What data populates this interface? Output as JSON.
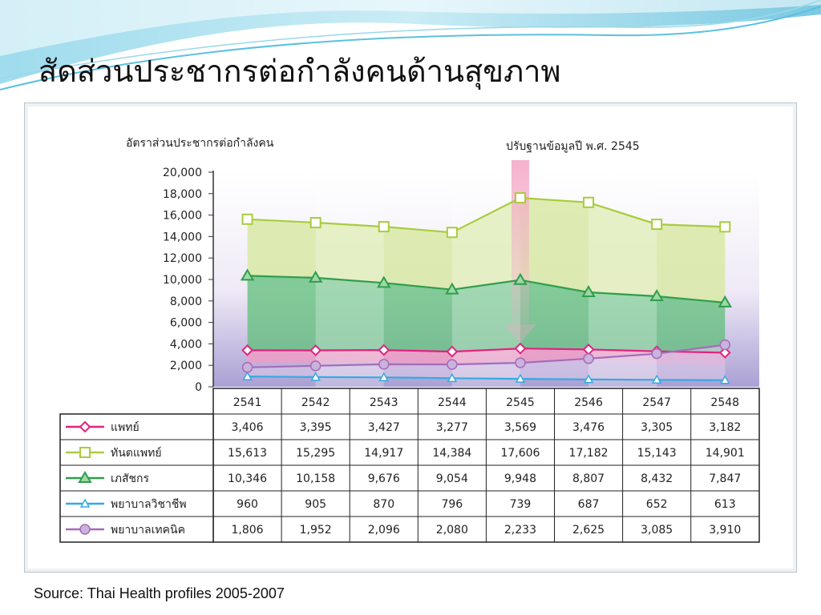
{
  "slide": {
    "title": "สัดส่วนประชากรต่อกำลังคนด้านสุขภาพ",
    "source": "Source: Thai Health profiles 2005-2007"
  },
  "chart_data": {
    "type": "area",
    "ylabel": "อัตราส่วนประชากรต่อกำลังคน",
    "annotation": "ปรับฐานข้อมูลปี พ.ศ. 2545",
    "ylim": [
      0,
      20000
    ],
    "yticks": [
      "20,000",
      "18,000",
      "16,000",
      "14,000",
      "12,000",
      "10,000",
      "8,000",
      "6,000",
      "4,000",
      "2,000",
      "0"
    ],
    "categories": [
      "2541",
      "2542",
      "2543",
      "2544",
      "2545",
      "2546",
      "2547",
      "2548"
    ],
    "series": [
      {
        "name": "แพทย์",
        "color": "#e0237f",
        "marker": "diamond",
        "values": [
          3406,
          3395,
          3427,
          3277,
          3569,
          3476,
          3305,
          3182
        ],
        "labels": [
          "3,406",
          "3,395",
          "3,427",
          "3,277",
          "3,569",
          "3,476",
          "3,305",
          "3,182"
        ]
      },
      {
        "name": "ทันตแพทย์",
        "color": "#a8cc3c",
        "marker": "square",
        "values": [
          15613,
          15295,
          14917,
          14384,
          17606,
          17182,
          15143,
          14901
        ],
        "labels": [
          "15,613",
          "15,295",
          "14,917",
          "14,384",
          "17,606",
          "17,182",
          "15,143",
          "14,901"
        ]
      },
      {
        "name": "เภสัชกร",
        "color": "#2f9e4a",
        "marker": "triangle",
        "values": [
          10346,
          10158,
          9676,
          9054,
          9948,
          8807,
          8432,
          7847
        ],
        "labels": [
          "10,346",
          "10,158",
          "9,676",
          "9,054",
          "9,948",
          "8,807",
          "8,432",
          "7,847"
        ]
      },
      {
        "name": "พยาบาลวิชาชีพ",
        "color": "#36a9e1",
        "marker": "triangle-small",
        "values": [
          960,
          905,
          870,
          796,
          739,
          687,
          652,
          613
        ],
        "labels": [
          "960",
          "905",
          "870",
          "796",
          "739",
          "687",
          "652",
          "613"
        ]
      },
      {
        "name": "พยาบาลเทคนิค",
        "color": "#a56cb8",
        "marker": "circle",
        "values": [
          1806,
          1952,
          2096,
          2080,
          2233,
          2625,
          3085,
          3910
        ],
        "labels": [
          "1,806",
          "1,952",
          "2,096",
          "2,080",
          "2,233",
          "2,625",
          "3,085",
          "3,910"
        ]
      }
    ]
  }
}
